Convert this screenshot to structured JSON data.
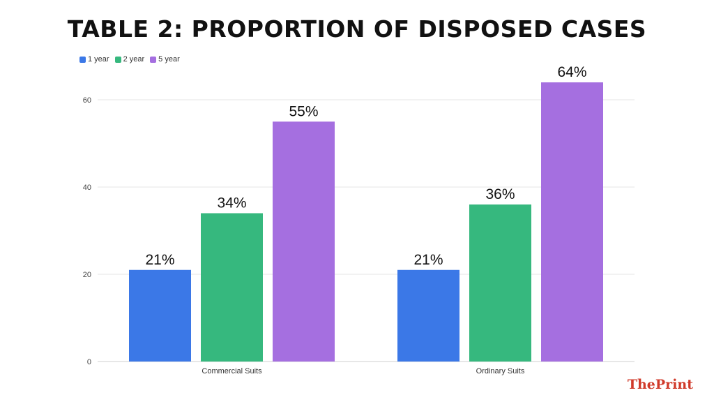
{
  "chart_data": {
    "type": "bar",
    "title": "TABLE 2: PROPORTION OF DISPOSED CASES",
    "categories": [
      "Commercial Suits",
      "Ordinary Suits"
    ],
    "series": [
      {
        "name": "1 year",
        "color": "#3b78e7",
        "values": [
          21,
          21
        ],
        "labels": [
          "21%",
          "21%"
        ]
      },
      {
        "name": "2 year",
        "color": "#36b87e",
        "values": [
          34,
          36
        ],
        "labels": [
          "34%",
          "36%"
        ]
      },
      {
        "name": "5 year",
        "color": "#a56fe0",
        "values": [
          55,
          64
        ],
        "labels": [
          "55%",
          "64%"
        ]
      }
    ],
    "yticks": [
      0,
      20,
      40,
      60
    ],
    "ylim": [
      0,
      65
    ],
    "xlabel": "",
    "ylabel": "",
    "grid": true,
    "legend": "top-left"
  },
  "brand": {
    "part1": "The",
    "part2": "Print",
    "color": "#d03a2a"
  }
}
